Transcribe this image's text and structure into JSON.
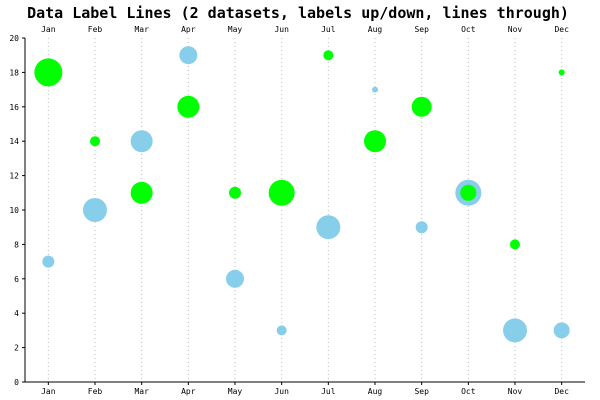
{
  "chart_data": {
    "type": "scatter",
    "title": "Data Label Lines (2 datasets, labels up/down, lines through)",
    "categories": [
      "Jan",
      "Feb",
      "Mar",
      "Apr",
      "May",
      "Jun",
      "Jul",
      "Aug",
      "Sep",
      "Oct",
      "Nov",
      "Dec"
    ],
    "ylim": [
      0,
      20
    ],
    "yticks": [
      0,
      2,
      4,
      6,
      8,
      10,
      12,
      14,
      16,
      18,
      20
    ],
    "grid": {
      "x": true,
      "y": false
    },
    "x_labels_top": true,
    "series": [
      {
        "color": "#87ceeb",
        "values": [
          7,
          10,
          14,
          19,
          6,
          3,
          9,
          17,
          9,
          11,
          3,
          3
        ],
        "sizes": [
          4,
          10,
          9,
          7,
          7,
          3,
          10,
          1,
          4,
          11,
          10,
          6
        ]
      },
      {
        "color": "#00ff00",
        "values": [
          18,
          14,
          11,
          16,
          11,
          11,
          19,
          14,
          16,
          11,
          8,
          18
        ],
        "sizes": [
          12,
          3,
          9,
          9,
          4,
          11,
          3,
          9,
          8,
          6,
          3,
          1
        ]
      }
    ]
  }
}
